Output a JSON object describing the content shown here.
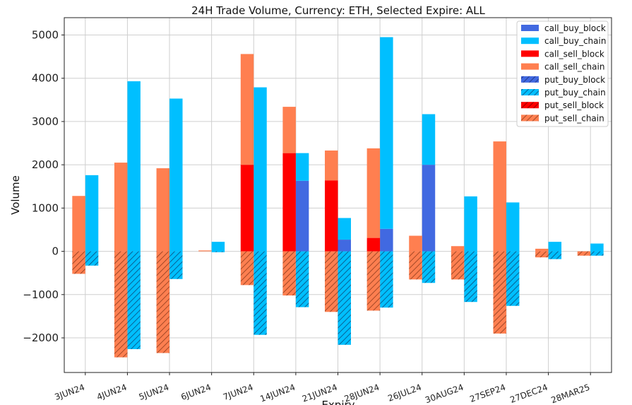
{
  "chart_data": {
    "type": "bar",
    "title": "24H Trade Volume, Currency: ETH, Selected Expire: ALL",
    "xlabel": "Expiry",
    "ylabel": "Volume",
    "ylim": [
      -2800,
      5400
    ],
    "yticks": [
      -2000,
      -1000,
      0,
      1000,
      2000,
      3000,
      4000,
      5000
    ],
    "ytick_labels": [
      "−2000",
      "−1000",
      "0",
      "1000",
      "2000",
      "3000",
      "4000",
      "5000"
    ],
    "grid": true,
    "legend_position": "top-right",
    "categories": [
      "3JUN24",
      "4JUN24",
      "5JUN24",
      "6JUN24",
      "7JUN24",
      "14JUN24",
      "21JUN24",
      "28JUN24",
      "26JUL24",
      "30AUG24",
      "27SEP24",
      "27DEC24",
      "28MAR25"
    ],
    "series": [
      {
        "name": "call_buy_block",
        "color": "#4169e1",
        "hatch": false,
        "side": "right",
        "values": [
          0,
          0,
          0,
          0,
          0,
          1630,
          270,
          520,
          2000,
          0,
          0,
          0,
          0
        ]
      },
      {
        "name": "call_buy_chain",
        "color": "#00bfff",
        "hatch": false,
        "side": "right",
        "values": [
          1760,
          3930,
          3530,
          220,
          3790,
          640,
          500,
          4430,
          1170,
          1270,
          1130,
          220,
          180
        ]
      },
      {
        "name": "call_sell_block",
        "color": "#ff0000",
        "hatch": false,
        "side": "left",
        "values": [
          0,
          0,
          0,
          0,
          2000,
          2270,
          1640,
          310,
          0,
          0,
          0,
          0,
          0
        ]
      },
      {
        "name": "call_sell_chain",
        "color": "#ff7f50",
        "hatch": false,
        "side": "left",
        "values": [
          1280,
          2050,
          1920,
          20,
          2560,
          1070,
          690,
          2070,
          360,
          120,
          2540,
          60,
          0
        ]
      },
      {
        "name": "put_buy_block",
        "color": "#4169e1",
        "hatch": true,
        "side": "right",
        "values": [
          0,
          0,
          0,
          0,
          0,
          0,
          0,
          0,
          0,
          0,
          0,
          0,
          0
        ]
      },
      {
        "name": "put_buy_chain",
        "color": "#00bfff",
        "hatch": true,
        "side": "right",
        "values": [
          -330,
          -2260,
          -640,
          -20,
          -1930,
          -1290,
          -2160,
          -1300,
          -730,
          -1170,
          -1260,
          -180,
          -100
        ]
      },
      {
        "name": "put_sell_block",
        "color": "#ff0000",
        "hatch": true,
        "side": "left",
        "values": [
          0,
          0,
          0,
          0,
          0,
          0,
          0,
          0,
          0,
          0,
          0,
          0,
          0
        ]
      },
      {
        "name": "put_sell_chain",
        "color": "#ff7f50",
        "hatch": true,
        "side": "left",
        "values": [
          -520,
          -2450,
          -2350,
          0,
          -780,
          -1020,
          -1400,
          -1370,
          -650,
          -650,
          -1900,
          -140,
          -100
        ]
      }
    ]
  }
}
